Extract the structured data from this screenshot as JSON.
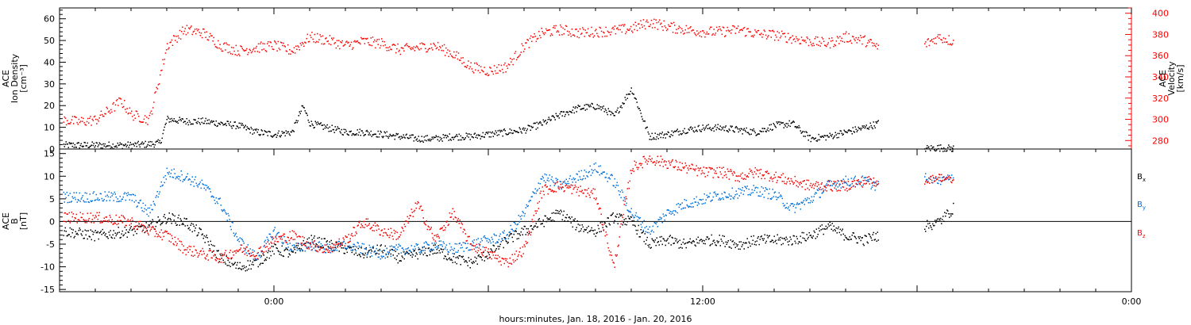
{
  "xlabel": "hours:minutes, Jan. 18, 2016 - Jan. 20, 2016",
  "colors": {
    "axis": "#000000",
    "red": "#ff0000",
    "blue": "#0070e0",
    "black": "#000000"
  },
  "chart_data": [
    {
      "type": "scatter",
      "panel": "top",
      "ylabel": [
        "ACE",
        "Ion Density",
        "[cm⁻³]"
      ],
      "ylabel_right": [
        "ACE",
        "Velocity",
        "[km/s]"
      ],
      "x_time_ticks": [
        {
          "hour": 0,
          "label": "0:00"
        },
        {
          "hour": 12,
          "label": "12:00"
        },
        {
          "hour": 24,
          "label": "0:00"
        }
      ],
      "xlim_hours": [
        -6,
        24
      ],
      "ylim": [
        0,
        65
      ],
      "yticks": [
        0,
        10,
        20,
        30,
        40,
        50,
        60
      ],
      "ylim_right": [
        272,
        405
      ],
      "yticks_right": [
        280,
        300,
        320,
        340,
        360,
        380,
        400
      ],
      "series": [
        {
          "role": "density",
          "axis": "left",
          "color": "black",
          "x_hours": [
            -5.9,
            -5.5,
            -5,
            -4.5,
            -4,
            -3.5,
            -3.2,
            -3,
            -2.5,
            -2,
            -1.5,
            -1,
            -0.5,
            0,
            0.5,
            0.8,
            1,
            1.5,
            2,
            2.5,
            3,
            3.5,
            4,
            4.5,
            5,
            5.5,
            6,
            6.5,
            7,
            7.5,
            8,
            8.5,
            9,
            9.3,
            9.5,
            10,
            10.5,
            11,
            11.5,
            12,
            12.5,
            13,
            13.5,
            14,
            14.5,
            15,
            15.5,
            16,
            16.5,
            16.9
          ],
          "values": [
            2,
            2,
            2,
            2,
            2,
            2.5,
            3,
            14,
            13,
            13,
            12,
            11,
            8,
            7,
            8,
            20,
            12,
            10,
            8,
            8,
            7,
            6,
            5,
            5,
            6,
            6,
            7,
            8,
            9,
            12,
            16,
            19,
            20,
            18,
            15,
            28,
            6,
            7,
            9,
            10,
            10,
            9,
            8,
            11,
            12,
            5,
            6,
            8,
            10,
            12
          ]
        },
        {
          "role": "density-late",
          "axis": "left",
          "color": "black",
          "x_hours": [
            18.2,
            18.6,
            19
          ],
          "values": [
            0.5,
            0.8,
            0.5
          ]
        },
        {
          "role": "velocity",
          "axis": "right",
          "color": "red",
          "x_hours": [
            -5.9,
            -5.5,
            -5,
            -4.5,
            -4.3,
            -4,
            -3.5,
            -3,
            -2.5,
            -2,
            -1.5,
            -1,
            -0.5,
            0,
            0.5,
            1,
            1.5,
            2,
            2.5,
            3,
            3.5,
            4,
            4.5,
            5,
            5.5,
            6,
            6.5,
            7,
            7.5,
            8,
            8.5,
            9,
            9.5,
            10,
            10.5,
            11,
            11.5,
            12,
            12.5,
            13,
            13.5,
            14,
            14.5,
            15,
            15.5,
            16,
            16.5,
            16.9
          ],
          "values": [
            300,
            298,
            300,
            312,
            318,
            305,
            300,
            370,
            385,
            382,
            370,
            365,
            368,
            370,
            365,
            378,
            375,
            370,
            374,
            372,
            366,
            368,
            370,
            362,
            350,
            346,
            350,
            370,
            382,
            385,
            382,
            383,
            384,
            386,
            392,
            388,
            385,
            383,
            383,
            385,
            381,
            380,
            377,
            374,
            372,
            378,
            375,
            368
          ]
        },
        {
          "role": "velocity-late",
          "axis": "right",
          "color": "red",
          "x_hours": [
            18.2,
            18.6,
            19
          ],
          "values": [
            371,
            378,
            374
          ]
        }
      ]
    },
    {
      "type": "scatter",
      "panel": "bottom",
      "ylabel": [
        "ACE",
        "B",
        "[nT]"
      ],
      "ylim": [
        -15.5,
        16
      ],
      "yticks": [
        -15,
        -10,
        -5,
        0,
        5,
        10,
        15
      ],
      "zero_line": true,
      "series": [
        {
          "name": "Bx",
          "color": "black",
          "x_hours": [
            -5.9,
            -5,
            -4,
            -3.5,
            -3,
            -2.5,
            -2,
            -1.5,
            -1,
            -0.5,
            0,
            0.5,
            1,
            1.5,
            2,
            2.5,
            3,
            3.5,
            4,
            4.5,
            5,
            5.5,
            6,
            6.5,
            7,
            7.5,
            8,
            8.5,
            9,
            9.5,
            10,
            10.5,
            11,
            11.5,
            12,
            12.5,
            13,
            13.5,
            14,
            14.5,
            15,
            15.5,
            16,
            16.5,
            16.9
          ],
          "values": [
            -2,
            -3,
            -2,
            -1,
            1,
            0,
            -3,
            -8,
            -10,
            -9,
            -6,
            -7,
            -4,
            -5,
            -6,
            -7,
            -6,
            -8,
            -7,
            -6,
            -8,
            -9,
            -7,
            -4,
            -2,
            0,
            2,
            -1,
            -2,
            1,
            0,
            -5,
            -4,
            -5,
            -4,
            -4,
            -5,
            -4,
            -4,
            -4,
            -3,
            -1,
            -3,
            -4,
            -3
          ]
        },
        {
          "name": "By",
          "color": "blue",
          "x_hours": [
            -5.9,
            -5,
            -4,
            -3.5,
            -3,
            -2.5,
            -2,
            -1.5,
            -1,
            -0.5,
            0,
            0.5,
            1,
            1.5,
            2,
            2.5,
            3,
            3.5,
            4,
            4.5,
            5,
            5.5,
            6,
            6.5,
            7,
            7.5,
            8,
            8.5,
            9,
            9.5,
            10,
            10.5,
            11,
            11.5,
            12,
            12.5,
            13,
            13.5,
            14,
            14.5,
            15,
            15.5,
            16,
            16.5,
            16.9
          ],
          "values": [
            5.5,
            5.5,
            5.5,
            2,
            11,
            10,
            8,
            4,
            -4,
            -8,
            -2,
            -6,
            -5,
            -6,
            -5,
            -6,
            -7,
            -6,
            -6,
            -5,
            -6,
            -5,
            -4,
            -3,
            2,
            10,
            8,
            10,
            12,
            9,
            2,
            -2,
            2,
            4,
            5,
            6,
            6.5,
            7,
            6,
            3,
            5,
            8,
            9,
            9,
            8
          ]
        },
        {
          "name": "Bz",
          "color": "red",
          "x_hours": [
            -5.9,
            -5,
            -4,
            -3.5,
            -3,
            -2.5,
            -2,
            -1.5,
            -1,
            -0.5,
            0,
            0.5,
            1,
            1.5,
            2,
            2.5,
            3,
            3.5,
            4,
            4.5,
            5,
            5.5,
            6,
            6.5,
            7,
            7.5,
            8,
            8.5,
            9,
            9.5,
            10,
            10.5,
            11,
            11.5,
            12,
            12.5,
            13,
            13.5,
            14,
            14.5,
            15,
            15.5,
            16,
            16.5,
            16.9
          ],
          "values": [
            1,
            1,
            0,
            -2,
            -3,
            -6,
            -7,
            -8,
            -6,
            -7,
            -4,
            -3,
            -5,
            -6,
            -4,
            0,
            -2,
            -3,
            4,
            -4,
            2,
            -5,
            -7,
            -9,
            -6,
            7,
            8,
            7,
            6,
            -10,
            12,
            14,
            13,
            12,
            11,
            11,
            10,
            11,
            10,
            9,
            8,
            8,
            8,
            9,
            9
          ]
        },
        {
          "name": "late-clusters",
          "color": "black",
          "x_hours": [
            18.2,
            18.6,
            19
          ],
          "values": [
            -1,
            0,
            3
          ]
        }
      ],
      "late_clusters": [
        {
          "color": "blue",
          "x_hours": [
            18.2,
            18.6,
            19
          ],
          "values": [
            10,
            9,
            10
          ]
        },
        {
          "color": "red",
          "x_hours": [
            18.2,
            18.6,
            19
          ],
          "values": [
            9,
            10,
            9
          ]
        }
      ],
      "legend": [
        {
          "main": "B",
          "sub": "x",
          "color": "black"
        },
        {
          "main": "B",
          "sub": "y",
          "color": "blue"
        },
        {
          "main": "B",
          "sub": "z",
          "color": "red"
        }
      ]
    }
  ]
}
